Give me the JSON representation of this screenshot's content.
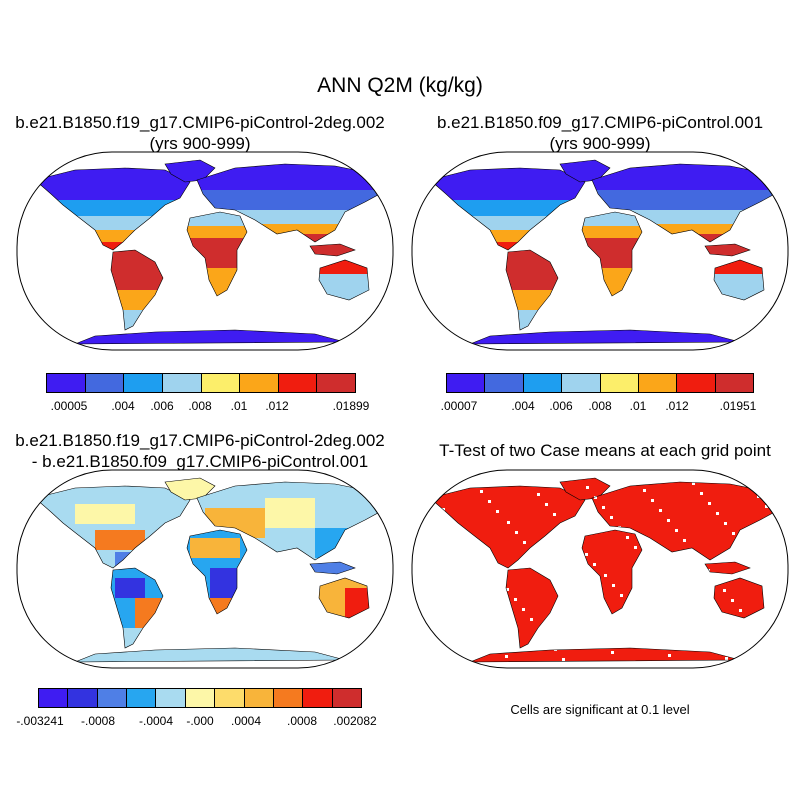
{
  "title": "ANN Q2M (kg/kg)",
  "palettes": {
    "abs": [
      "#3f1cf2",
      "#4369df",
      "#1e9ef0",
      "#9fd3ee",
      "#fcee6a",
      "#fba619",
      "#f01d0f",
      "#cf2d2d"
    ],
    "diff": [
      "#3f1cf2",
      "#3333e0",
      "#4f7fe6",
      "#27a6f0",
      "#a9dbf0",
      "#fdf7a8",
      "#fddc6b",
      "#f8b43a",
      "#f57a1f",
      "#f01d0f",
      "#cf2d2d"
    ],
    "ttest": "#f01d0f"
  },
  "panels": {
    "case1": {
      "title_line1": "b.e21.B1850.f19_g17.CMIP6-piControl-2deg.002",
      "title_line2": "(yrs 900-999)",
      "colorbar": {
        "labels": [
          ".00005",
          ".004",
          ".006",
          ".008",
          ".01",
          ".012",
          ".01899"
        ]
      }
    },
    "case2": {
      "title_line1": "b.e21.B1850.f09_g17.CMIP6-piControl.001",
      "title_line2": "(yrs 900-999)",
      "colorbar": {
        "labels": [
          ".00007",
          ".004",
          ".006",
          ".008",
          ".01",
          ".012",
          ".01951"
        ]
      }
    },
    "diff": {
      "title_line1": "b.e21.B1850.f19_g17.CMIP6-piControl-2deg.002",
      "title_line2": "- b.e21.B1850.f09_g17.CMIP6-piControl.001",
      "colorbar": {
        "labels": [
          "-.003241",
          "-.0008",
          "-.0004",
          "-.000",
          ".0004",
          ".0008",
          ".002082"
        ]
      }
    },
    "ttest": {
      "title": "T-Test of two Case means at each grid point",
      "note": "Cells are significant at 0.1 level"
    }
  }
}
